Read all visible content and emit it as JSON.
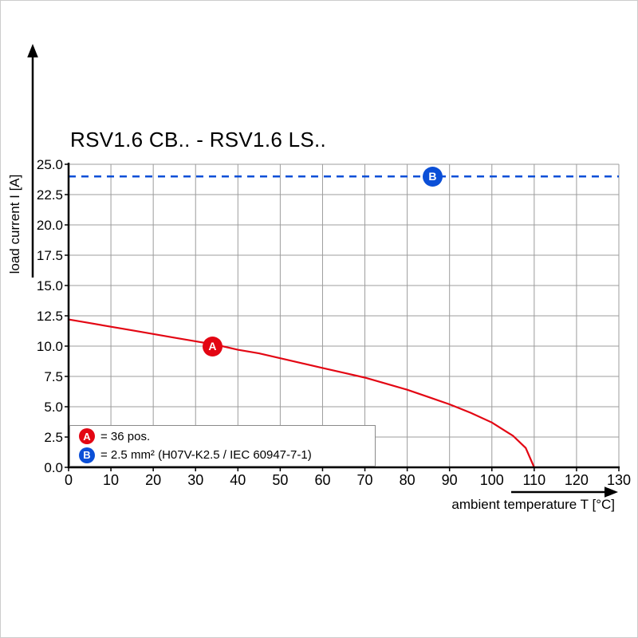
{
  "chart_data": {
    "type": "line",
    "title": "RSV1.6 CB.. - RSV1.6 LS..",
    "xlabel": "ambient temperature T [°C]",
    "ylabel": "load current I [A]",
    "xlim": [
      0,
      130
    ],
    "ylim": [
      0,
      25
    ],
    "xticks": [
      0,
      10,
      20,
      30,
      40,
      50,
      60,
      70,
      80,
      90,
      100,
      110,
      120,
      130
    ],
    "ytick_values": [
      0,
      2.5,
      5,
      7.5,
      10,
      12.5,
      15,
      17.5,
      20,
      22.5,
      25
    ],
    "ytick_labels": [
      "0.0",
      "2.5",
      "5.0",
      "7.5",
      "10.0",
      "12.5",
      "15.0",
      "17.5",
      "20.0",
      "22.5",
      "25.0"
    ],
    "grid": true,
    "colors": {
      "red": "#e30613",
      "blue": "#0b4fd7",
      "grid": "#9c9c9c",
      "axis": "#000000"
    },
    "series": [
      {
        "name": "A",
        "label": "36 pos.",
        "color": "#e30613",
        "style": "solid",
        "x": [
          0,
          5,
          10,
          15,
          20,
          25,
          30,
          35,
          40,
          45,
          50,
          55,
          60,
          65,
          70,
          75,
          80,
          85,
          90,
          95,
          100,
          105,
          108,
          110
        ],
        "y": [
          12.2,
          11.9,
          11.6,
          11.3,
          11.0,
          10.7,
          10.4,
          10.1,
          9.7,
          9.4,
          9.0,
          8.6,
          8.2,
          7.8,
          7.4,
          6.9,
          6.4,
          5.8,
          5.2,
          4.5,
          3.7,
          2.6,
          1.6,
          0
        ],
        "marker": {
          "letter": "A",
          "x": 34,
          "y": 10
        }
      },
      {
        "name": "B",
        "label": "2.5 mm² (H07V-K2.5 / IEC 60947-7-1)",
        "color": "#0b4fd7",
        "style": "dashed",
        "x": [
          0,
          130
        ],
        "y": [
          24,
          24
        ],
        "marker": {
          "letter": "B",
          "x": 86,
          "y": 24
        }
      }
    ],
    "legend": [
      {
        "letter": "A",
        "text": "= 36 pos."
      },
      {
        "letter": "B",
        "text": "= 2.5 mm² (H07V-K2.5 / IEC 60947-7-1)"
      }
    ],
    "legend_position": "bottom-left"
  }
}
